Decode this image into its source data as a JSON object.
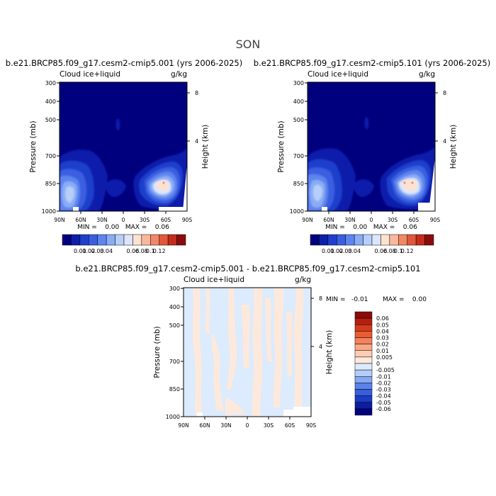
{
  "page": {
    "title": "SON"
  },
  "chart_data": [
    {
      "type": "heatmap",
      "title": "b.e21.BRCP85.f09_g17.cesm2-cmip5.001 (yrs 2006-2025)",
      "field_label": "Cloud ice+liquid",
      "units": "g/kg",
      "ylabel": "Pressure (mb)",
      "ylabel_right": "Height (km)",
      "x_ticks": [
        "90N",
        "60N",
        "30N",
        "0",
        "30S",
        "60S",
        "90S"
      ],
      "y_ticks": [
        "300",
        "400",
        "500",
        "700",
        "850",
        "1000"
      ],
      "height_ticks": [
        "8",
        "4"
      ],
      "min_max_text": "MIN =    0.00   MAX =    0.06",
      "colorbar": {
        "labels": [
          "0.01",
          "0.02",
          "0.03",
          "0.04",
          "0.06",
          "0.08",
          "0.1",
          "0.12"
        ],
        "colors": [
          "#00007f",
          "#0d1eab",
          "#1f3fcc",
          "#3a5fe0",
          "#5d85ee",
          "#8aacf6",
          "#b6cff9",
          "#dbe6fb",
          "#fde2d2",
          "#f8b89c",
          "#f08866",
          "#e0573a",
          "#c42b1a",
          "#8b0a0a"
        ]
      }
    },
    {
      "type": "heatmap",
      "title": "b.e21.BRCP85.f09_g17.cesm2-cmip5.101 (yrs 2006-2025)",
      "field_label": "Cloud ice+liquid",
      "units": "g/kg",
      "ylabel": "Pressure (mb)",
      "ylabel_right": "Height (km)",
      "x_ticks": [
        "90N",
        "60N",
        "30N",
        "0",
        "30S",
        "60S",
        "90S"
      ],
      "y_ticks": [
        "300",
        "400",
        "500",
        "700",
        "850",
        "1000"
      ],
      "height_ticks": [
        "8",
        "4"
      ],
      "min_max_text": "MIN =    0.00   MAX =    0.06",
      "colorbar": {
        "labels": [
          "0.01",
          "0.02",
          "0.03",
          "0.04",
          "0.06",
          "0.08",
          "0.1",
          "0.12"
        ],
        "colors": [
          "#00007f",
          "#0d1eab",
          "#1f3fcc",
          "#3a5fe0",
          "#5d85ee",
          "#8aacf6",
          "#b6cff9",
          "#dbe6fb",
          "#fde2d2",
          "#f8b89c",
          "#f08866",
          "#e0573a",
          "#c42b1a",
          "#8b0a0a"
        ]
      }
    },
    {
      "type": "heatmap",
      "title": "b.e21.BRCP85.f09_g17.cesm2-cmip5.001 - b.e21.BRCP85.f09_g17.cesm2-cmip5.101",
      "field_label": "Cloud ice+liquid",
      "units": "g/kg",
      "ylabel": "Pressure (mb)",
      "ylabel_right": "Height (km)",
      "x_ticks": [
        "90N",
        "60N",
        "30N",
        "0",
        "30S",
        "60S",
        "90S"
      ],
      "y_ticks": [
        "300",
        "400",
        "500",
        "700",
        "850",
        "1000"
      ],
      "height_ticks": [
        "8",
        "4"
      ],
      "min_text": "MIN =   -0.01",
      "max_text": "MAX =    0.00",
      "colorbar": {
        "labels": [
          "0.06",
          "0.05",
          "0.04",
          "0.03",
          "0.02",
          "0.01",
          "0.005",
          "0",
          "-0.005",
          "-0.01",
          "-0.02",
          "-0.03",
          "-0.04",
          "-0.05",
          "-0.06"
        ],
        "colors": [
          "#8b0a0a",
          "#b3200f",
          "#d63a1c",
          "#ea5c33",
          "#f4825a",
          "#f8a985",
          "#fbcdb3",
          "#fde9dc",
          "#dcebfd",
          "#b3cdf8",
          "#86a9f2",
          "#5b82ea",
          "#375fdc",
          "#1d3cc4",
          "#0c1d9e",
          "#00007f"
        ]
      }
    }
  ]
}
